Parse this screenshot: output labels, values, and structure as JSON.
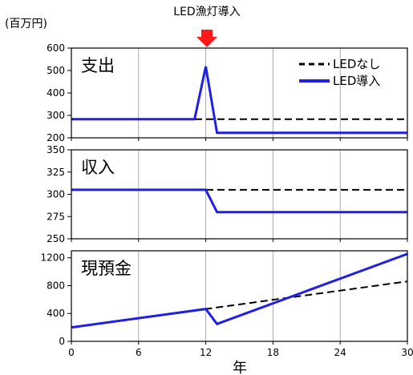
{
  "figure": {
    "unit": "(百万円)",
    "annotation": "LED漁灯導入",
    "annotation_color": "#ff1a1a",
    "xlabel": "年"
  },
  "legend": {
    "without_led": "LEDなし",
    "with_led": "LED導入"
  },
  "colors": {
    "without_led": "#000000",
    "with_led": "#1f1fe6",
    "grid": "#9a9a9a"
  },
  "chart_data": [
    {
      "type": "line",
      "title": "支出",
      "xlim": [
        0,
        30
      ],
      "ylim": [
        200,
        600
      ],
      "xticks": [
        0,
        6,
        12,
        18,
        24,
        30
      ],
      "yticks": [
        200,
        300,
        400,
        500,
        600
      ],
      "grid": "vertical",
      "legend": "top-right",
      "series": [
        {
          "name": "LEDなし",
          "style": "dashed",
          "x": [
            0,
            30
          ],
          "y": [
            283,
            283
          ]
        },
        {
          "name": "LED導入",
          "style": "solid",
          "x": [
            0,
            11,
            12,
            13,
            30
          ],
          "y": [
            283,
            283,
            518,
            222,
            222
          ]
        }
      ]
    },
    {
      "type": "line",
      "title": "収入",
      "xlim": [
        0,
        30
      ],
      "ylim": [
        250,
        350
      ],
      "xticks": [
        0,
        6,
        12,
        18,
        24,
        30
      ],
      "yticks": [
        250,
        275,
        300,
        325,
        350
      ],
      "grid": "vertical",
      "series": [
        {
          "name": "LEDなし",
          "style": "dashed",
          "x": [
            0,
            30
          ],
          "y": [
            305,
            305
          ]
        },
        {
          "name": "LED導入",
          "style": "solid",
          "x": [
            0,
            12,
            13,
            30
          ],
          "y": [
            305,
            305,
            280,
            280
          ]
        }
      ]
    },
    {
      "type": "line",
      "title": "現預金",
      "xlim": [
        0,
        30
      ],
      "ylim": [
        0,
        1300
      ],
      "xticks": [
        0,
        6,
        12,
        18,
        24,
        30
      ],
      "yticks": [
        0,
        400,
        800,
        1200
      ],
      "grid": "vertical",
      "series": [
        {
          "name": "LEDなし",
          "style": "dashed",
          "x": [
            0,
            30
          ],
          "y": [
            200,
            860
          ]
        },
        {
          "name": "LED導入",
          "style": "solid",
          "x": [
            0,
            12,
            13,
            30
          ],
          "y": [
            200,
            465,
            250,
            1255
          ]
        }
      ]
    }
  ]
}
